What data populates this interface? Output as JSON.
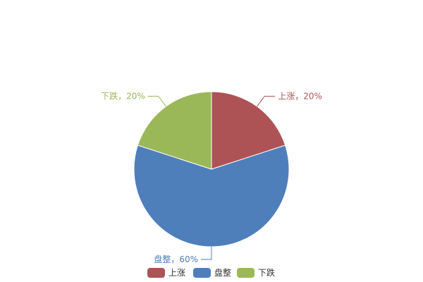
{
  "chart_data": {
    "type": "pie",
    "title": "",
    "slices": [
      {
        "name": "上涨",
        "value": 20,
        "label": "上涨，20%",
        "color": "#ad5356"
      },
      {
        "name": "盘整",
        "value": 60,
        "label": "盘整，60%",
        "color": "#4e7fbb"
      },
      {
        "name": "下跌",
        "value": 20,
        "label": "下跌，20%",
        "color": "#9bb858"
      }
    ],
    "legend": {
      "placement": "bottom",
      "items": [
        "上涨",
        "盘整",
        "下跌"
      ]
    },
    "start_angle": "top",
    "direction": "clockwise"
  }
}
